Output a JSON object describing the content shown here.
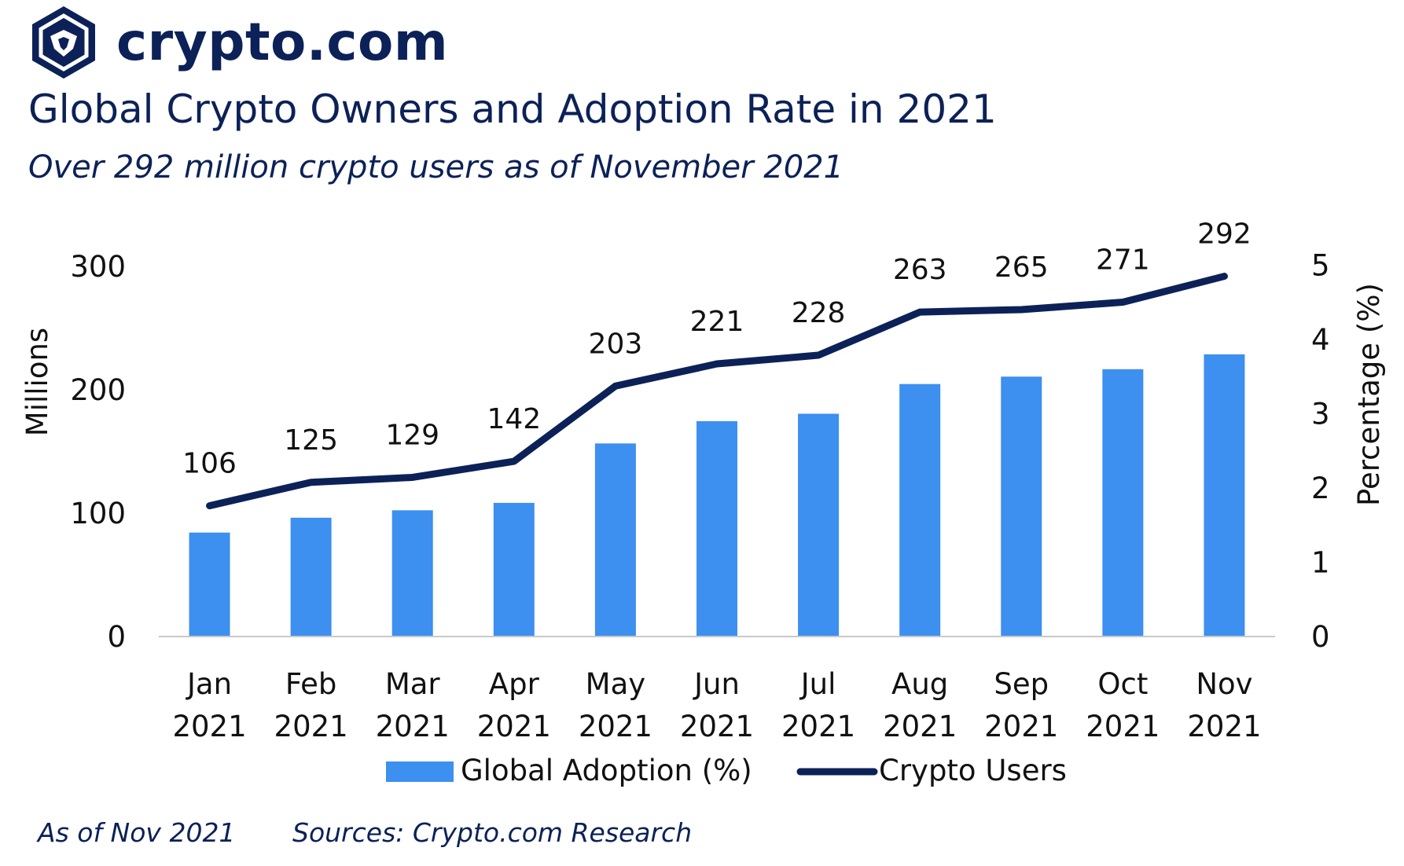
{
  "brand": {
    "name": "crypto.com",
    "colors": {
      "navy": "#0c2157",
      "blue": "#3d8ff0",
      "axis": "#c9c9c9"
    }
  },
  "header": {
    "title": "Global Crypto Owners and Adoption Rate in 2021",
    "subtitle": "Over 292 million crypto users as of November 2021"
  },
  "footer": {
    "as_of": "As of Nov 2021",
    "sources": "Sources: Crypto.com Research"
  },
  "chart_data": {
    "type": "bar",
    "categories": [
      [
        "Jan",
        "2021"
      ],
      [
        "Feb",
        "2021"
      ],
      [
        "Mar",
        "2021"
      ],
      [
        "Apr",
        "2021"
      ],
      [
        "May",
        "2021"
      ],
      [
        "Jun",
        "2021"
      ],
      [
        "Jul",
        "2021"
      ],
      [
        "Aug",
        "2021"
      ],
      [
        "Sep",
        "2021"
      ],
      [
        "Oct",
        "2021"
      ],
      [
        "Nov",
        "2021"
      ]
    ],
    "series": [
      {
        "name": "Global Adoption (%)",
        "type": "bar",
        "axis": "right",
        "values": [
          1.4,
          1.6,
          1.7,
          1.8,
          2.6,
          2.9,
          3.0,
          3.4,
          3.5,
          3.6,
          3.8
        ]
      },
      {
        "name": "Crypto Users",
        "type": "line",
        "axis": "left",
        "values": [
          106,
          125,
          129,
          142,
          203,
          221,
          228,
          263,
          265,
          271,
          292
        ],
        "labels": [
          "106",
          "125",
          "129",
          "142",
          "203",
          "221",
          "228",
          "263",
          "265",
          "271",
          "292"
        ]
      }
    ],
    "y_left": {
      "label": "Millions",
      "range": [
        0,
        300
      ],
      "ticks": [
        0,
        100,
        200,
        300
      ]
    },
    "y_right": {
      "label": "Percentage (%)",
      "range": [
        0,
        5
      ],
      "ticks": [
        0,
        1,
        2,
        3,
        4,
        5
      ]
    },
    "grid": false,
    "legend": "bottom"
  }
}
